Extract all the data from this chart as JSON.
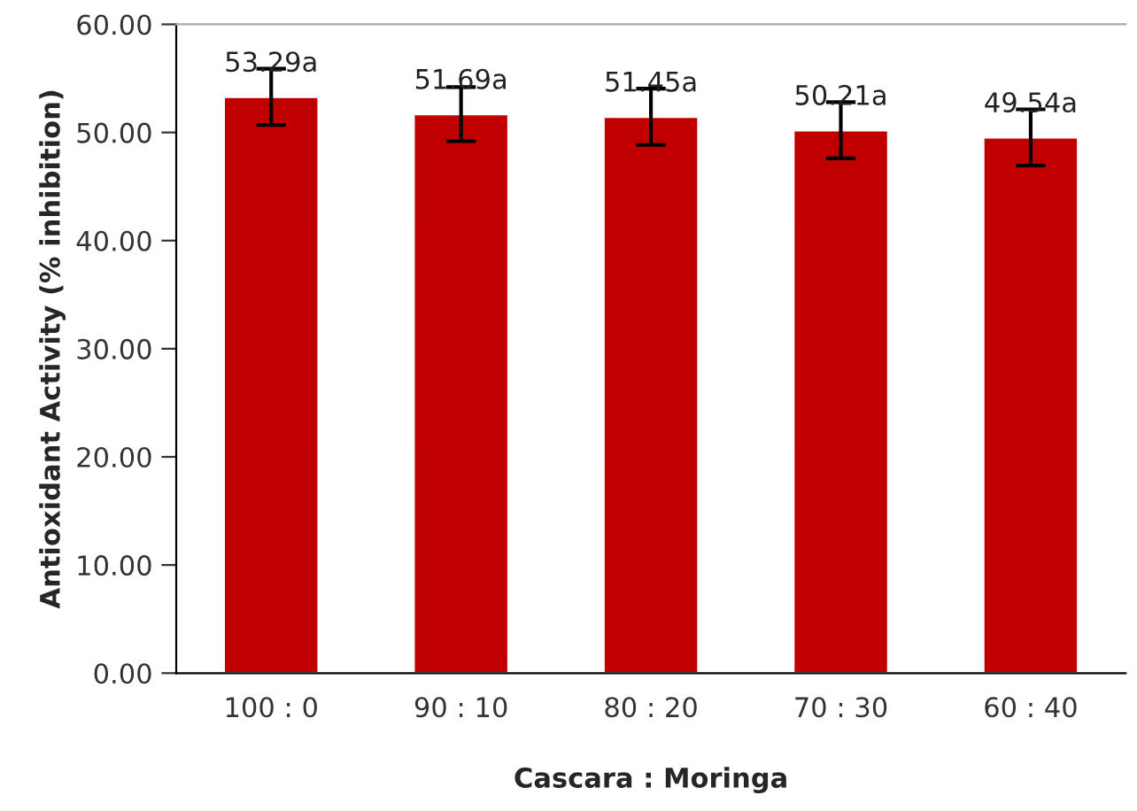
{
  "chart_data": {
    "type": "bar",
    "xlabel": "Cascara : Moringa",
    "ylabel": "Antioxidant Activity (% inhibition)",
    "categories": [
      "100 : 0",
      "90 : 10",
      "80 : 20",
      "70 : 30",
      "60 : 40"
    ],
    "values": [
      53.29,
      51.69,
      51.45,
      50.21,
      49.54
    ],
    "errors": [
      2.6,
      2.5,
      2.6,
      2.6,
      2.6
    ],
    "value_labels": [
      "53.29a",
      "51.69a",
      "51.45a",
      "50.21a",
      "49.54a"
    ],
    "color": "#c00000",
    "ylim": [
      0,
      60
    ],
    "yticks": [
      {
        "value": 0,
        "label": "0.00"
      },
      {
        "value": 10,
        "label": "10.00"
      },
      {
        "value": 20,
        "label": "20.00"
      },
      {
        "value": 30,
        "label": "30.00"
      },
      {
        "value": 40,
        "label": "40.00"
      },
      {
        "value": 50,
        "label": "50.00"
      },
      {
        "value": 60,
        "label": "60.00"
      }
    ],
    "grid": false,
    "legend": false
  }
}
